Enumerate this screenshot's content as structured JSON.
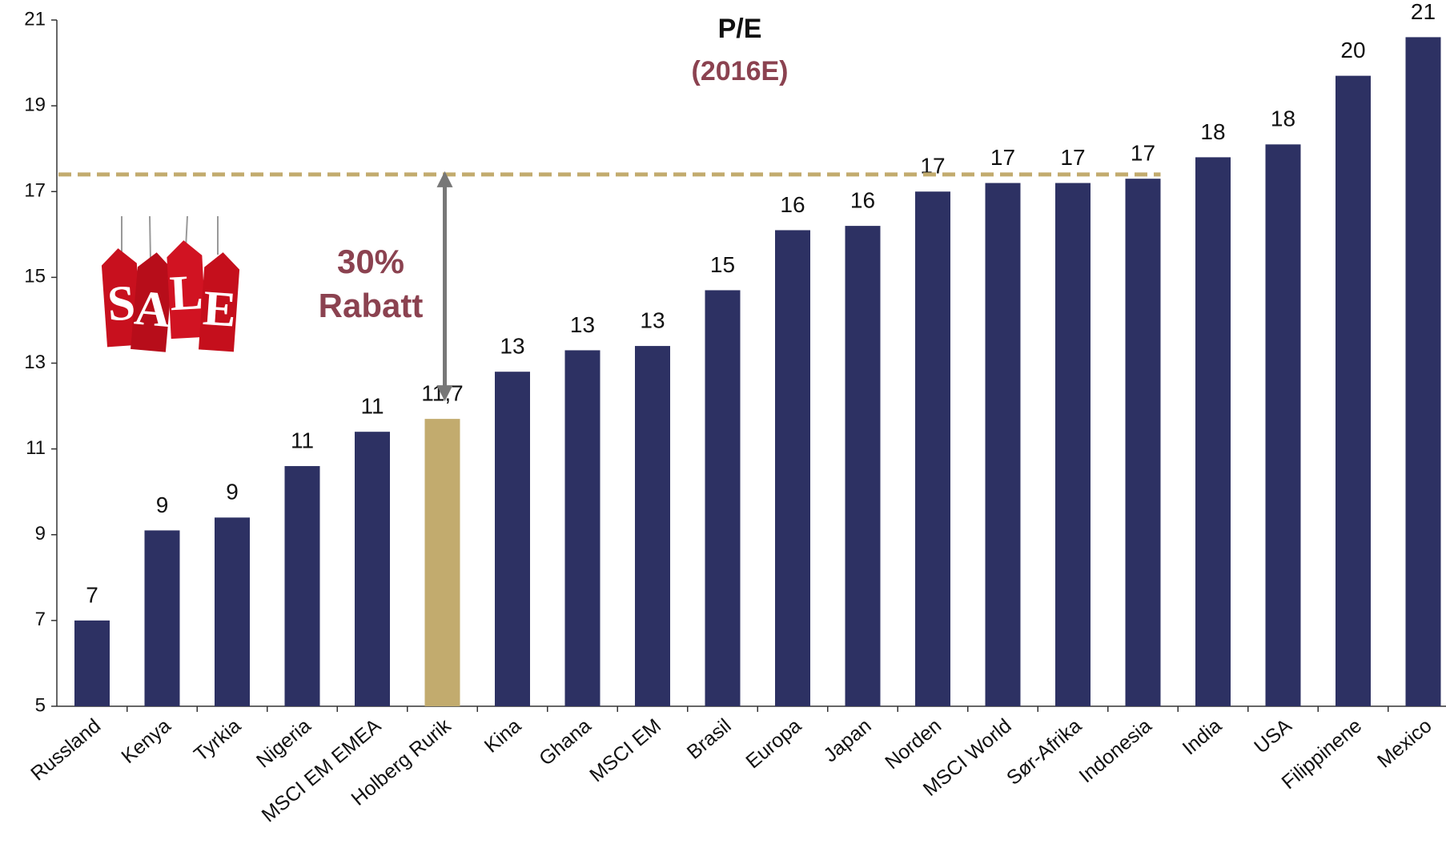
{
  "chart_data": {
    "type": "bar",
    "title": "P/E",
    "subtitle": "(2016E)",
    "categories": [
      "Russland",
      "Kenya",
      "Tyrkia",
      "Nigeria",
      "MSCI EM EMEA",
      "Holberg Rurik",
      "Kina",
      "Ghana",
      "MSCI EM",
      "Brasil",
      "Europa",
      "Japan",
      "Norden",
      "MSCI World",
      "Sør-Afrika",
      "Indonesia",
      "India",
      "USA",
      "Filippinene",
      "Mexico"
    ],
    "values": [
      7.0,
      9.1,
      9.4,
      10.6,
      11.4,
      11.7,
      12.8,
      13.3,
      13.4,
      14.7,
      16.1,
      16.2,
      17.0,
      17.2,
      17.2,
      17.3,
      17.8,
      18.1,
      19.7,
      20.6
    ],
    "value_labels": [
      "7",
      "9",
      "9",
      "11",
      "11",
      "11,7",
      "13",
      "13",
      "13",
      "15",
      "16",
      "16",
      "17",
      "17",
      "17",
      "17",
      "18",
      "18",
      "20",
      "21"
    ],
    "colors": [
      "#2d3163",
      "#2d3163",
      "#2d3163",
      "#2d3163",
      "#2d3163",
      "#c2ab6e",
      "#2d3163",
      "#2d3163",
      "#2d3163",
      "#2d3163",
      "#2d3163",
      "#2d3163",
      "#2d3163",
      "#2d3163",
      "#2d3163",
      "#2d3163",
      "#2d3163",
      "#2d3163",
      "#2d3163",
      "#2d3163"
    ],
    "ylim": [
      5,
      21
    ],
    "yticks": [
      5,
      7,
      9,
      11,
      13,
      15,
      17,
      19,
      21
    ],
    "grid": false,
    "reference_line": {
      "value": 17.4,
      "color": "#c2ab6e"
    },
    "annotation": [
      "30%",
      "Rabatt"
    ],
    "sale_badge": [
      "S",
      "A",
      "L",
      "E"
    ]
  }
}
